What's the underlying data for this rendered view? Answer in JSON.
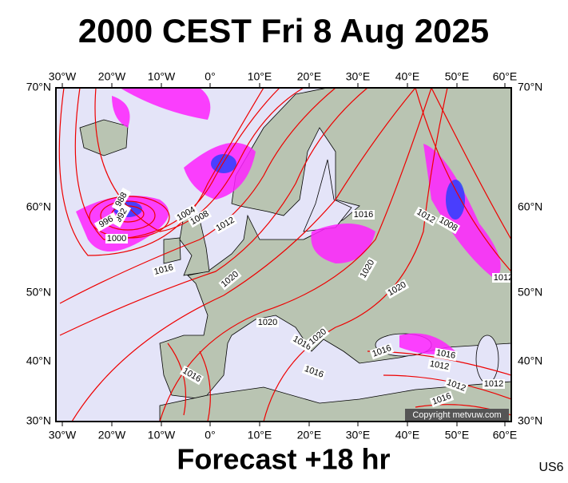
{
  "header": {
    "title": "2000 CEST Fri 8 Aug 2025"
  },
  "map": {
    "lon_labels": [
      "30°W",
      "20°W",
      "10°W",
      "0°",
      "10°E",
      "20°E",
      "30°E",
      "40°E",
      "50°E",
      "60°E"
    ],
    "lat_labels": [
      "70°N",
      "60°N",
      "50°N",
      "40°N",
      "30°N"
    ],
    "isobar_labels": [
      "988",
      "992",
      "996",
      "1000",
      "1004",
      "1008",
      "1012",
      "1016",
      "1020",
      "1020",
      "1016",
      "1020",
      "1020",
      "1016",
      "1012",
      "1008",
      "1016",
      "1016",
      "1012",
      "1012",
      "1016",
      "1016",
      "1012",
      "1016",
      "1012",
      "1020"
    ],
    "copyright": "Copyright metvuw.com"
  },
  "footer": {
    "forecast": "Forecast +18 hr",
    "code": "US6"
  }
}
